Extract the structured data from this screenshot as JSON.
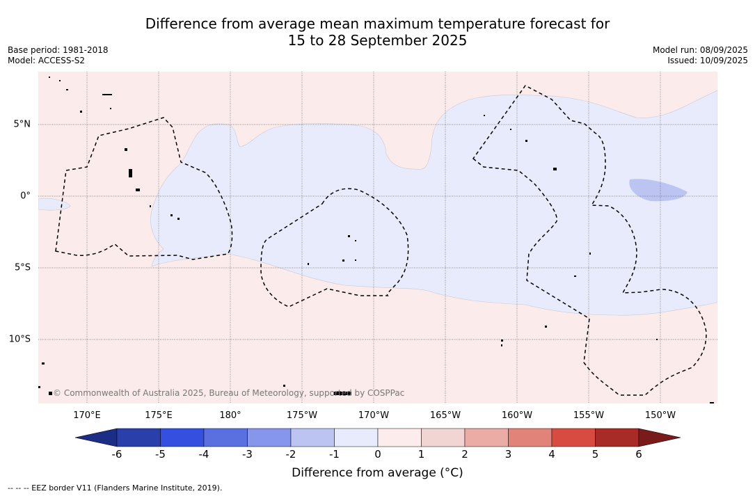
{
  "title_line1": "Difference from average mean maximum temperature forecast for",
  "title_line2": "15 to 28 September 2025",
  "base_period": "Base period: 1981-2018",
  "model": "Model: ACCESS-S2",
  "model_run": "Model run: 08/09/2025",
  "issued": "Issued: 10/09/2025",
  "credit": "© Commonwealth of Australia 2025, Bureau of Meteorology, supported by COSPPac",
  "lat_labels": [
    "5°N",
    "0°",
    "5°S",
    "10°S"
  ],
  "lon_labels": [
    "170°E",
    "175°E",
    "180°",
    "175°W",
    "170°W",
    "165°W",
    "160°W",
    "155°W",
    "150°W"
  ],
  "colorbar": {
    "ticks": [
      "-6",
      "-5",
      "-4",
      "-3",
      "-2",
      "-1",
      "0",
      "1",
      "2",
      "3",
      "4",
      "5",
      "6"
    ],
    "colors": [
      "#1c2d86",
      "#2b3faa",
      "#3550e0",
      "#5a70e0",
      "#8696ea",
      "#bcc4f2",
      "#e8ebfb",
      "#fcedec",
      "#f0d5d2",
      "#eaaca5",
      "#e2837a",
      "#d84b40",
      "#a92b27",
      "#7a1b1b"
    ],
    "label": "Difference from average (°C)"
  },
  "legend_footnote": "--  --  -- EEZ border V11 (Flanders Marine Institute, 2019).",
  "map": {
    "background_color": "#fbebea",
    "anomaly_light_blue": "#e8ebfb",
    "anomaly_mid_blue": "#bcc4f2"
  }
}
